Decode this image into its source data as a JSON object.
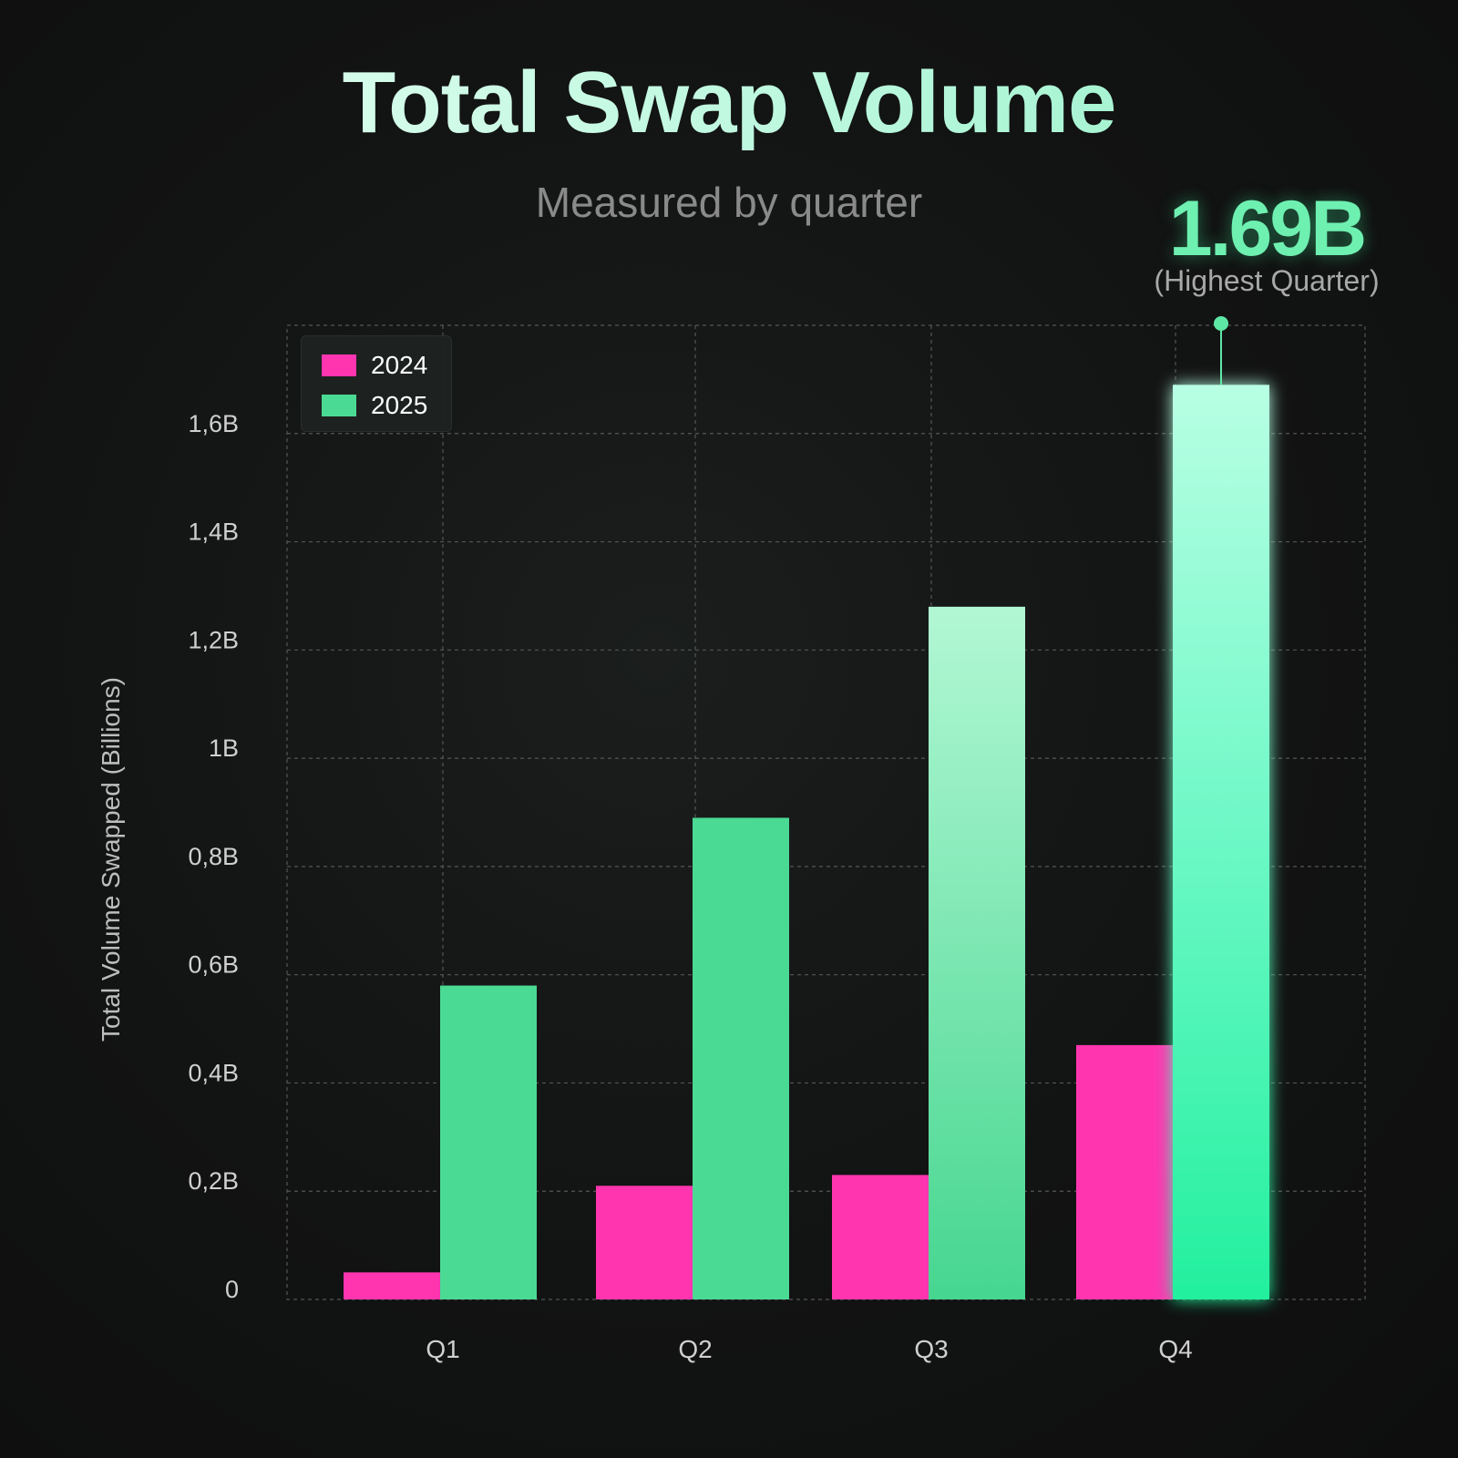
{
  "chart_data": {
    "type": "bar",
    "title": "Total Swap Volume",
    "subtitle": "Measured by quarter",
    "ylabel": "Total Volume Swapped (Billions)",
    "xlabel": "",
    "categories": [
      "Q1",
      "Q2",
      "Q3",
      "Q4"
    ],
    "series": [
      {
        "name": "2024",
        "color": "#ff35b0",
        "values": [
          0.05,
          0.21,
          0.23,
          0.47
        ]
      },
      {
        "name": "2025",
        "color": "#4ada94",
        "values": [
          0.58,
          0.89,
          1.28,
          1.69
        ]
      }
    ],
    "yticks": [
      {
        "value": 0,
        "label": "0"
      },
      {
        "value": 0.2,
        "label": "0,2B"
      },
      {
        "value": 0.4,
        "label": "0,4B"
      },
      {
        "value": 0.6,
        "label": "0,6B"
      },
      {
        "value": 0.8,
        "label": "0,8B"
      },
      {
        "value": 1.0,
        "label": "1B"
      },
      {
        "value": 1.2,
        "label": "1,2B"
      },
      {
        "value": 1.4,
        "label": "1,4B"
      },
      {
        "value": 1.6,
        "label": "1,6B"
      }
    ],
    "ylim": [
      0,
      1.8
    ],
    "grid": true,
    "legend": "top-left",
    "annotation": {
      "value": "1.69B",
      "label": "(Highest Quarter)",
      "category": "Q4"
    }
  }
}
